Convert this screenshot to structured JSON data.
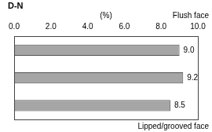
{
  "chart_data": {
    "type": "bar",
    "title": "D-N",
    "x_label": "(%)",
    "annotations": [
      "Flush face",
      "Lipped/grooved face"
    ],
    "categories": [
      null,
      null,
      null
    ],
    "values": [
      9.0,
      9.2,
      8.5
    ],
    "value_labels": [
      "9.0",
      "9.2",
      "8.5"
    ],
    "color": "#a6a6a6",
    "orientation": "horizontal",
    "xlim": [
      0,
      10
    ],
    "xticks": [
      {
        "value": 0,
        "label": "0.0"
      },
      {
        "value": 2,
        "label": "2.0"
      },
      {
        "value": 4,
        "label": "4.0"
      },
      {
        "value": 6,
        "label": "6.0"
      },
      {
        "value": 8,
        "label": "8.0"
      },
      {
        "value": 10,
        "label": "10.0"
      }
    ],
    "grid": false,
    "data_labels": true,
    "tick_labels": "x"
  }
}
